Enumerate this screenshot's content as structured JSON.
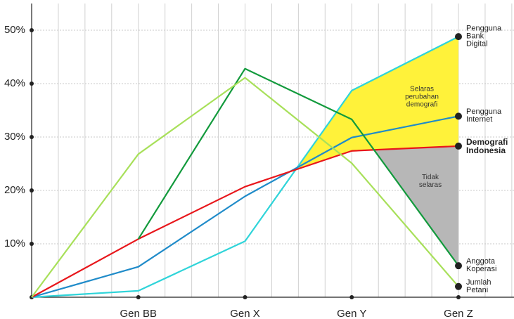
{
  "chart_data": {
    "type": "line",
    "categories": [
      null,
      "Gen BB",
      "Gen X",
      "Gen Y",
      "Gen Z"
    ],
    "ylim": [
      0,
      55
    ],
    "yticks": [
      {
        "value": 10,
        "label": "10%"
      },
      {
        "value": 20,
        "label": "20%"
      },
      {
        "value": 30,
        "label": "30%"
      },
      {
        "value": 40,
        "label": "40%"
      },
      {
        "value": 50,
        "label": "50%"
      }
    ],
    "grid": true,
    "series": [
      {
        "name": "Pengguna Bank Digital",
        "color": "#2fd4d9",
        "values": [
          0,
          1.2,
          10.5,
          38.7,
          48.8
        ]
      },
      {
        "name": "Pengguna Internet",
        "color": "#1f8bc9",
        "values": [
          0,
          5.7,
          18.9,
          29.9,
          33.9
        ]
      },
      {
        "name": "Demografi Indonesia",
        "color": "#e8161b",
        "bold": true,
        "values": [
          0,
          10.9,
          20.7,
          27.4,
          28.3
        ]
      },
      {
        "name": "Anggota Koperasi",
        "color": "#129a3c",
        "values": [
          null,
          10.9,
          42.8,
          33.3,
          5.9
        ]
      },
      {
        "name": "Jumlah Petani",
        "color": "#a8e05a",
        "values": [
          0,
          26.8,
          41.1,
          25.1,
          2.0
        ]
      }
    ],
    "annotations": [
      "Selaras perubahan demografi",
      "Tidak selaras"
    ]
  }
}
